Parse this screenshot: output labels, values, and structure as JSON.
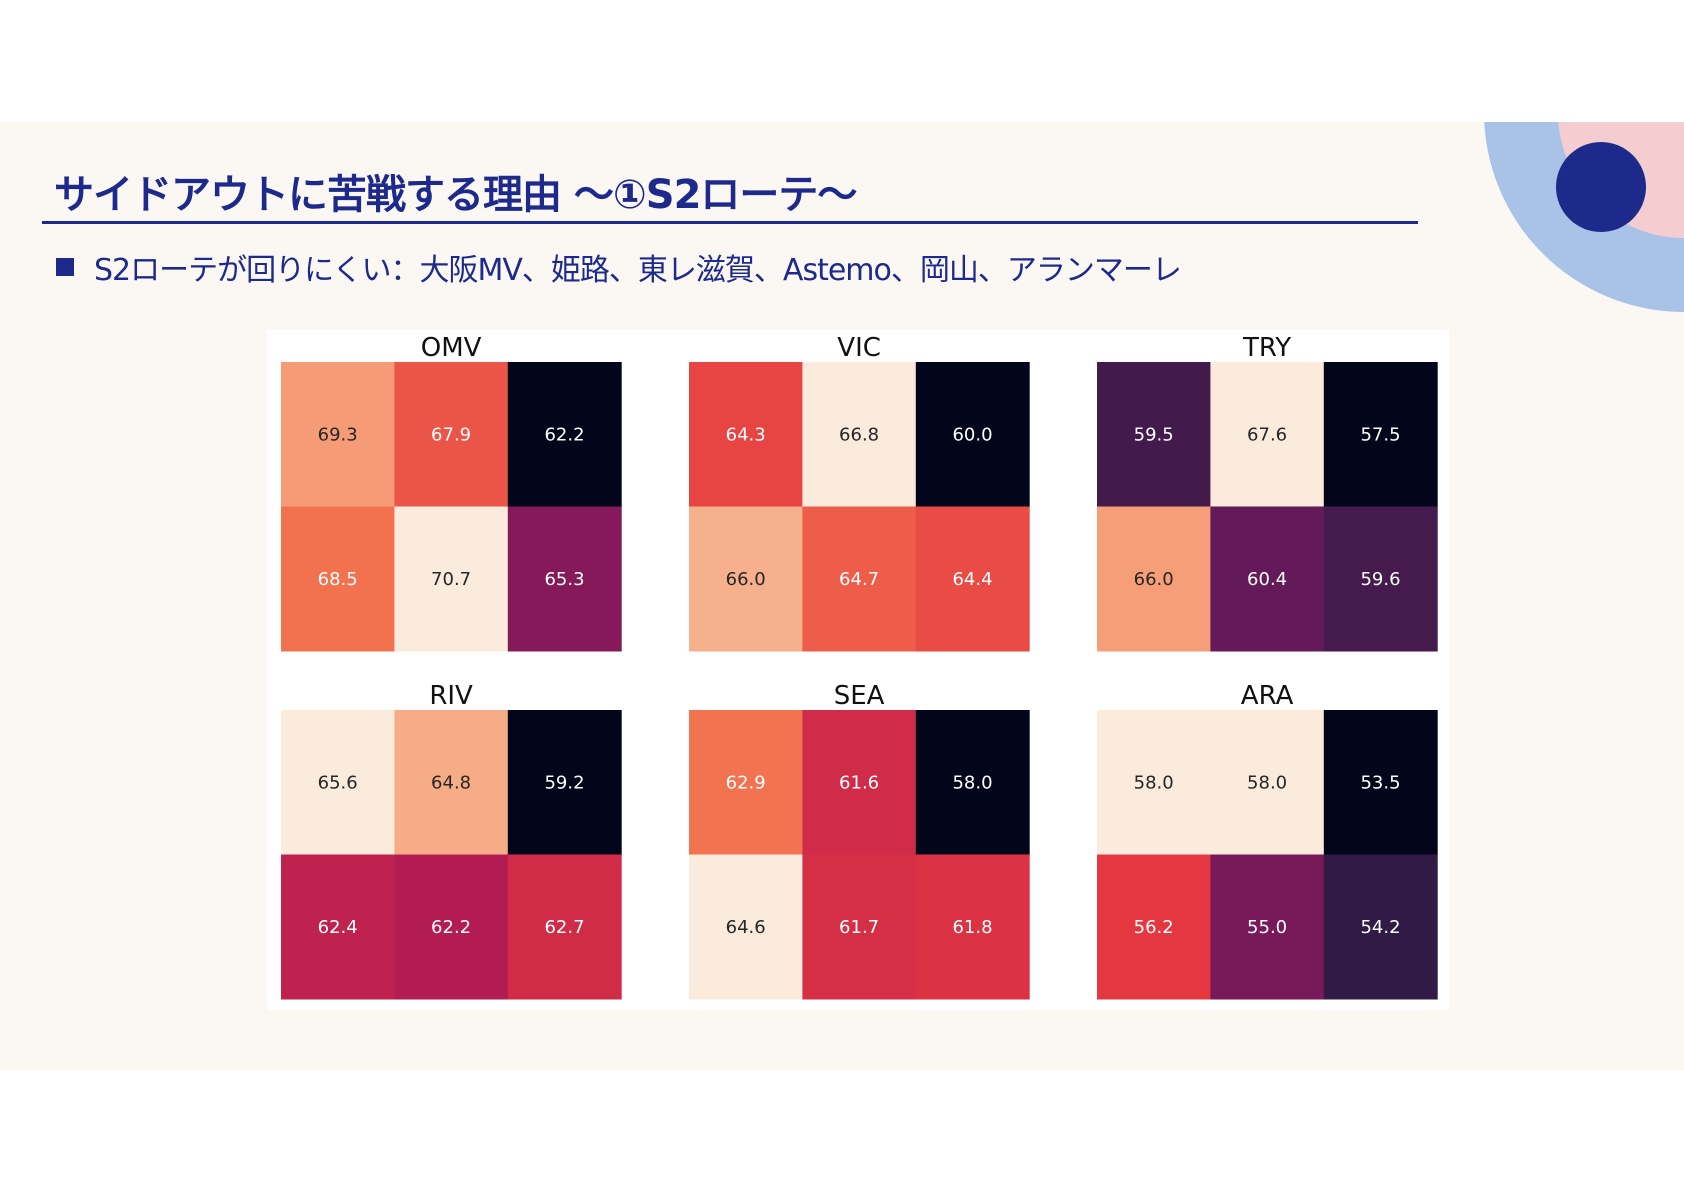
{
  "slide": {
    "title": "サイドアウトに苦戦する理由 〜①S2ローテ〜",
    "bullet": "S2ローテが回りにくい：大阪MV、姫路、東レ滋賀、Astemo、岡山、アランマーレ",
    "colors": {
      "accent": "#1d2a8c",
      "background": "#fbf8f4",
      "deco_blue": "#a9c2e8",
      "deco_pink": "#f4cdd0",
      "deco_circle": "#1d2a8c"
    }
  },
  "chart_data": {
    "type": "heatmap",
    "colormap": "rocket",
    "value_format": "0.0",
    "panels": [
      {
        "title": "OMV",
        "values": [
          [
            69.3,
            67.9,
            62.2
          ],
          [
            68.5,
            70.7,
            65.3
          ]
        ]
      },
      {
        "title": "VIC",
        "values": [
          [
            64.3,
            66.8,
            60.0
          ],
          [
            66.0,
            64.7,
            64.4
          ]
        ]
      },
      {
        "title": "TRY",
        "values": [
          [
            59.5,
            67.6,
            57.5
          ],
          [
            66.0,
            60.4,
            59.6
          ]
        ]
      },
      {
        "title": "RIV",
        "values": [
          [
            65.6,
            64.8,
            59.2
          ],
          [
            62.4,
            62.2,
            62.7
          ]
        ]
      },
      {
        "title": "SEA",
        "values": [
          [
            62.9,
            61.6,
            58.0
          ],
          [
            64.6,
            61.7,
            61.8
          ]
        ]
      },
      {
        "title": "ARA",
        "values": [
          [
            58.0,
            58.0,
            53.5
          ],
          [
            56.2,
            55.0,
            54.2
          ]
        ]
      }
    ]
  }
}
